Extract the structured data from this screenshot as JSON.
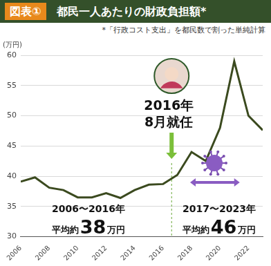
{
  "chart_data": {
    "type": "line",
    "figure_label": "図表①",
    "title": "都民一人あたりの財政負担額*",
    "subtitle": "*「行政コスト支出」を都民数で割った単純計算",
    "ylabel": "(万円)",
    "x": [
      2006,
      2007,
      2008,
      2009,
      2010,
      2011,
      2012,
      2013,
      2014,
      2015,
      2016,
      2017,
      2018,
      2019,
      2020,
      2021,
      2022,
      2023
    ],
    "values": [
      39.1,
      39.8,
      38.1,
      37.7,
      36.5,
      36.5,
      37.2,
      36.4,
      37.7,
      38.6,
      38.7,
      40.2,
      44.0,
      42.5,
      48.0,
      59.0,
      50.0,
      47.6
    ],
    "color": "#3b4a1f",
    "marker": "none",
    "xlim": [
      2006,
      2023
    ],
    "xticks": [
      2006,
      2008,
      2010,
      2012,
      2014,
      2016,
      2018,
      2020,
      2022
    ],
    "ylim": [
      30,
      60
    ],
    "yticks": [
      30,
      35,
      40,
      45,
      50,
      55,
      60
    ],
    "grid": true,
    "annotations": [
      {
        "text": [
          "2016年",
          "8月就任"
        ],
        "x": 2016.6
      }
    ],
    "period_averages": [
      {
        "period": "2006〜2016年",
        "prefix": "平均約",
        "value": 38,
        "unit": "万円"
      },
      {
        "period": "2017〜2023年",
        "prefix": "平均約",
        "value": 46,
        "unit": "万円"
      }
    ]
  }
}
